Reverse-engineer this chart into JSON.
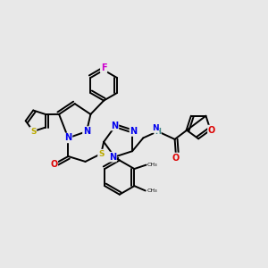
{
  "background_color": "#e8e8e8",
  "figsize": [
    3.0,
    3.0
  ],
  "dpi": 100,
  "atom_colors": {
    "C": "#000000",
    "N": "#0000ee",
    "O": "#dd0000",
    "S": "#bbaa00",
    "F": "#cc00cc",
    "H": "#448888"
  },
  "bond_color": "#000000",
  "bond_width": 1.4
}
